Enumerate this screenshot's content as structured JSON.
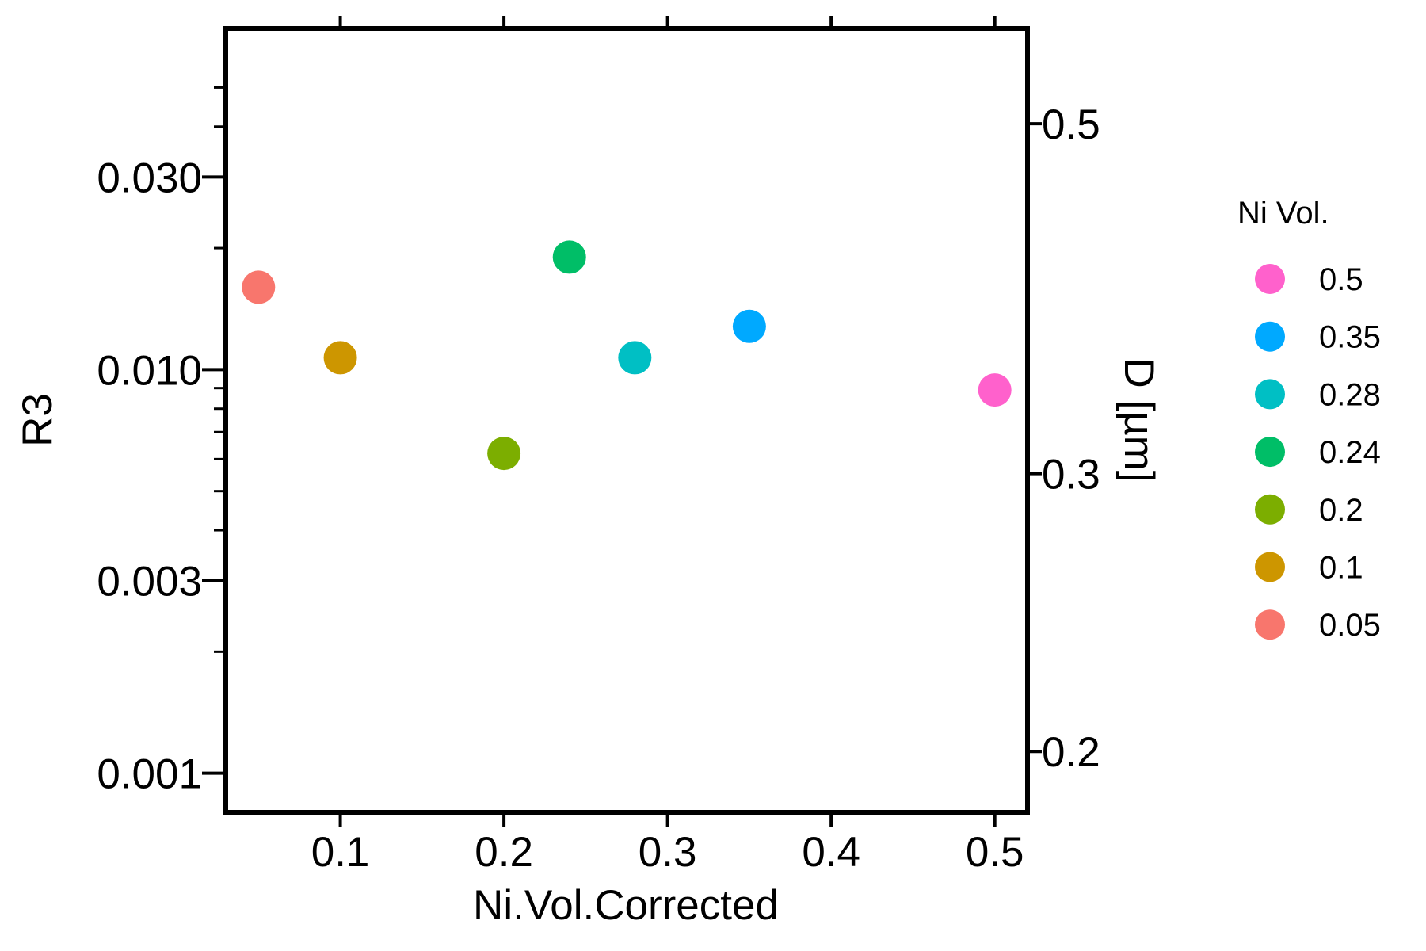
{
  "chart_data": {
    "type": "scatter",
    "xlabel": "Ni.Vol.Corrected",
    "ylabel": "R3",
    "y2label": "D [µm]",
    "xlim": [
      0.03,
      0.52
    ],
    "ylim": [
      0.0008,
      0.07
    ],
    "y_scale": "log",
    "y2lim": [
      0.183,
      0.5745
    ],
    "y2_scale": "log",
    "x_ticks": [
      0.1,
      0.2,
      0.3,
      0.4,
      0.5
    ],
    "x_tick_labels": [
      "0.1",
      "0.2",
      "0.3",
      "0.4",
      "0.5"
    ],
    "y_ticks": [
      0.001,
      0.003,
      0.01,
      0.03
    ],
    "y_tick_labels": [
      "0.001",
      "0.003",
      "0.010",
      "0.030"
    ],
    "y_minor_ticks": [
      0.002,
      0.004,
      0.005,
      0.006,
      0.007,
      0.008,
      0.009,
      0.02,
      0.04,
      0.05
    ],
    "y2_ticks": [
      0.2,
      0.3,
      0.5
    ],
    "y2_tick_labels": [
      "0.2",
      "0.3",
      "0.5"
    ],
    "grid": false,
    "legend": {
      "title": "Ni Vol.",
      "placement": "right",
      "entries": [
        {
          "label": "0.5",
          "color": "#FF61CC"
        },
        {
          "label": "0.35",
          "color": "#00A9FF"
        },
        {
          "label": "0.28",
          "color": "#00BFC4"
        },
        {
          "label": "0.24",
          "color": "#00BE67"
        },
        {
          "label": "0.2",
          "color": "#7CAE00"
        },
        {
          "label": "0.1",
          "color": "#CD9600"
        },
        {
          "label": "0.05",
          "color": "#F8766D"
        }
      ]
    },
    "points": [
      {
        "group": "0.05",
        "x": 0.05,
        "y": 0.016,
        "color": "#F8766D"
      },
      {
        "group": "0.1",
        "x": 0.1,
        "y": 0.0107,
        "color": "#CD9600"
      },
      {
        "group": "0.2",
        "x": 0.2,
        "y": 0.0062,
        "color": "#7CAE00"
      },
      {
        "group": "0.24",
        "x": 0.24,
        "y": 0.019,
        "color": "#00BE67"
      },
      {
        "group": "0.28",
        "x": 0.28,
        "y": 0.0107,
        "color": "#00BFC4"
      },
      {
        "group": "0.35",
        "x": 0.35,
        "y": 0.0128,
        "color": "#00A9FF"
      },
      {
        "group": "0.5",
        "x": 0.5,
        "y": 0.0089,
        "color": "#FF61CC"
      }
    ]
  }
}
